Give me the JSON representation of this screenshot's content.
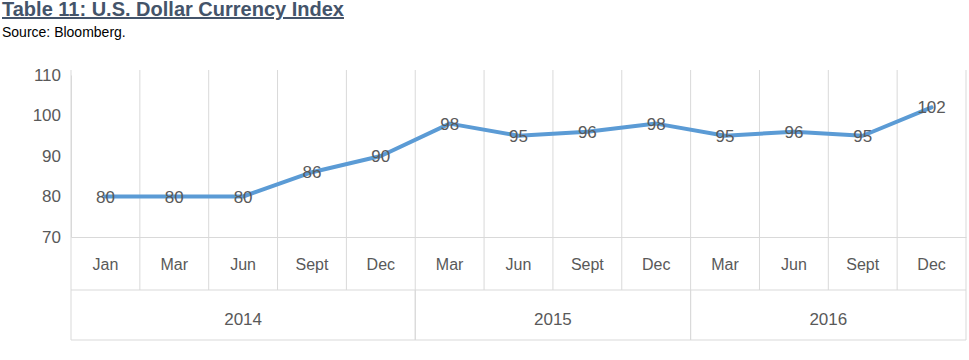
{
  "chart_data": {
    "type": "line",
    "title": "Table 11: U.S. Dollar Currency Index",
    "subtitle": "Source: Bloomberg.",
    "categories": [
      "Jan",
      "Mar",
      "Jun",
      "Sept",
      "Dec",
      "Mar",
      "Jun",
      "Sept",
      "Dec",
      "Mar",
      "Jun",
      "Sept",
      "Dec"
    ],
    "category_groups": [
      "2014",
      "2014",
      "2014",
      "2014",
      "2014",
      "2015",
      "2015",
      "2015",
      "2015",
      "2016",
      "2016",
      "2016",
      "2016"
    ],
    "values": [
      80,
      80,
      80,
      86,
      90,
      98,
      95,
      96,
      98,
      95,
      96,
      95,
      102
    ],
    "color": "#5b9bd5",
    "ylim": [
      70,
      110
    ],
    "yticks": [
      70,
      80,
      90,
      100,
      110
    ],
    "grid": true,
    "data_labels": true
  }
}
